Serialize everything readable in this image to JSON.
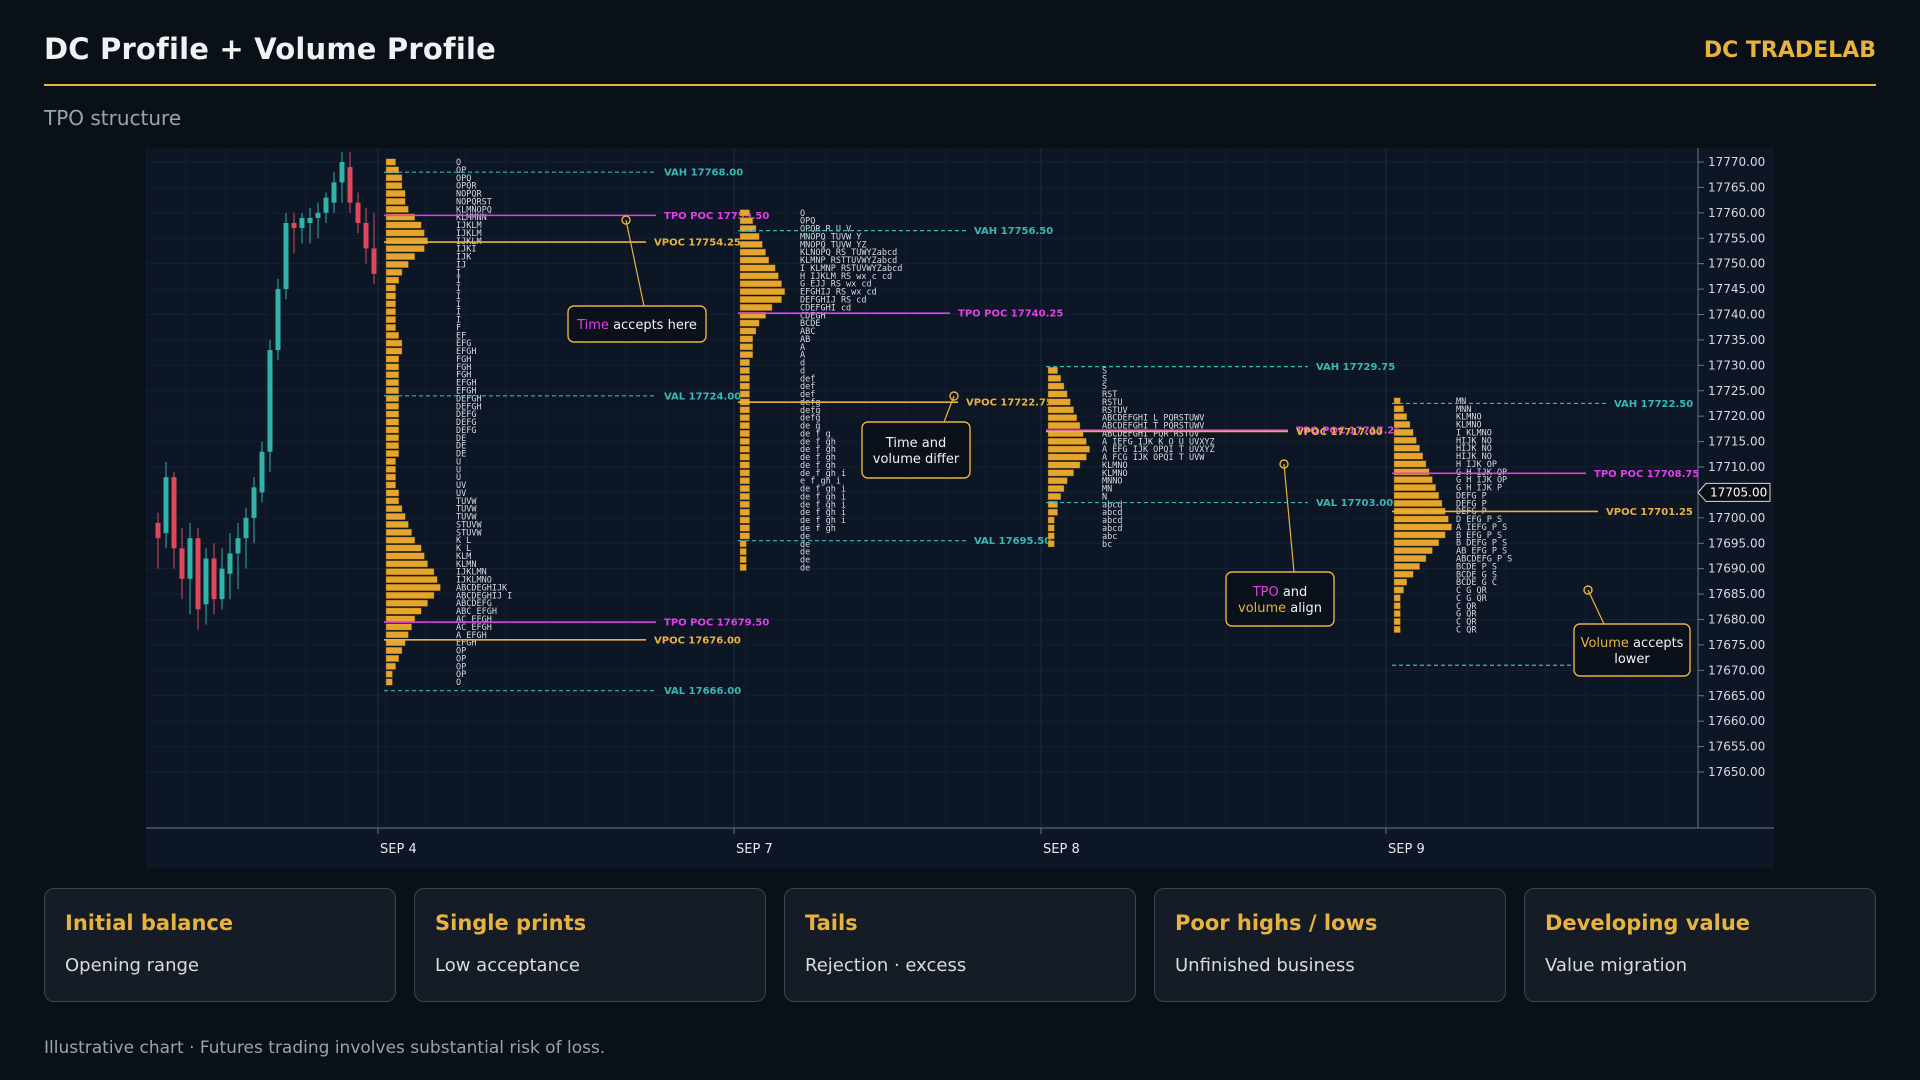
{
  "header": {
    "title": "DC Profile + Volume Profile",
    "brand": "DC TRADELAB"
  },
  "section_label": "TPO structure",
  "colors": {
    "accent": "#e8b23e",
    "tpo_poc": "#e040e6",
    "value_area": "#35b9b5",
    "candle_up": "#2fb3aa",
    "candle_down": "#e0485a",
    "volume": "#e6a52c"
  },
  "chart_data": {
    "type": "tpo_volume_profile",
    "y_axis": {
      "min": 17645,
      "max": 17772,
      "ticks": [
        17770,
        17765,
        17760,
        17755,
        17750,
        17745,
        17740,
        17735,
        17730,
        17725,
        17720,
        17715,
        17710,
        17705,
        17700,
        17695,
        17690,
        17685,
        17680,
        17675,
        17670,
        17665,
        17660,
        17655,
        17650
      ],
      "tick_format": "2dp",
      "current_price": 17705.0,
      "current_price_label": "17705.00"
    },
    "x_axis": {
      "labels": [
        "SEP 4",
        "SEP 7",
        "SEP 8",
        "SEP 9"
      ]
    },
    "candles": [
      {
        "o": 17699,
        "h": 17701,
        "l": 17690,
        "c": 17696
      },
      {
        "o": 17697,
        "h": 17711,
        "l": 17694,
        "c": 17708
      },
      {
        "o": 17708,
        "h": 17709,
        "l": 17690,
        "c": 17694
      },
      {
        "o": 17694,
        "h": 17698,
        "l": 17684,
        "c": 17688
      },
      {
        "o": 17688,
        "h": 17699,
        "l": 17681,
        "c": 17696
      },
      {
        "o": 17696,
        "h": 17698,
        "l": 17678,
        "c": 17682
      },
      {
        "o": 17683,
        "h": 17694,
        "l": 17679,
        "c": 17692
      },
      {
        "o": 17692,
        "h": 17695,
        "l": 17681,
        "c": 17684
      },
      {
        "o": 17684,
        "h": 17694,
        "l": 17682,
        "c": 17690
      },
      {
        "o": 17689,
        "h": 17697,
        "l": 17684,
        "c": 17693
      },
      {
        "o": 17693,
        "h": 17699,
        "l": 17686,
        "c": 17696
      },
      {
        "o": 17696,
        "h": 17702,
        "l": 17690,
        "c": 17700
      },
      {
        "o": 17700,
        "h": 17708,
        "l": 17695,
        "c": 17706
      },
      {
        "o": 17705,
        "h": 17715,
        "l": 17703,
        "c": 17713
      },
      {
        "o": 17713,
        "h": 17735,
        "l": 17709,
        "c": 17733
      },
      {
        "o": 17733,
        "h": 17747,
        "l": 17731,
        "c": 17745
      },
      {
        "o": 17745,
        "h": 17760,
        "l": 17743,
        "c": 17758
      },
      {
        "o": 17758,
        "h": 17760,
        "l": 17752,
        "c": 17757
      },
      {
        "o": 17757,
        "h": 17760,
        "l": 17754,
        "c": 17759
      },
      {
        "o": 17758,
        "h": 17761,
        "l": 17754,
        "c": 17759
      },
      {
        "o": 17759,
        "h": 17762,
        "l": 17755,
        "c": 17760
      },
      {
        "o": 17760,
        "h": 17764,
        "l": 17758,
        "c": 17763
      },
      {
        "o": 17762,
        "h": 17768,
        "l": 17760,
        "c": 17766
      },
      {
        "o": 17766,
        "h": 17772,
        "l": 17762,
        "c": 17770
      },
      {
        "o": 17769,
        "h": 17772,
        "l": 17760,
        "c": 17762
      },
      {
        "o": 17762,
        "h": 17764,
        "l": 17756,
        "c": 17758
      },
      {
        "o": 17758,
        "h": 17761,
        "l": 17750,
        "c": 17753
      },
      {
        "o": 17753,
        "h": 17760,
        "l": 17746,
        "c": 17748
      }
    ],
    "sessions": [
      {
        "date": "SEP 4",
        "levels": [
          {
            "kind": "vah",
            "price": 17768,
            "label": "VAH 17768.00"
          },
          {
            "kind": "tpo_poc",
            "price": 17759.5,
            "label": "TPO POC 17759.50"
          },
          {
            "kind": "vpoc",
            "price": 17754.25,
            "label": "VPOC 17754.25"
          },
          {
            "kind": "val",
            "price": 17724,
            "label": "VAL 17724.00"
          },
          {
            "kind": "tpo_poc",
            "price": 17679.5,
            "label": "TPO POC 17679.50"
          },
          {
            "kind": "vpoc",
            "price": 17676,
            "label": "VPOC 17676.00"
          },
          {
            "kind": "val",
            "price": 17666,
            "label": "VAL 17666.00"
          }
        ],
        "tpo_rows": [
          "O",
          "OP",
          "OPQ",
          "OPQR",
          "NOPQR",
          "NOPQRST",
          "KLMNOPQ",
          "KLMMNN",
          "IJKLM",
          "IJKLM",
          "IJKLM",
          "IJKI",
          "IJK",
          "IJ",
          "I",
          "I",
          "I",
          "I",
          "I",
          "I",
          "I",
          "F",
          "EF",
          "EFG",
          "EFGH",
          "FGH",
          "FGH",
          "FGH",
          "EFGH",
          "EFGH",
          "DEFGH",
          "DEFGH",
          "DEFG",
          "DEFG",
          "DEFG",
          "DE",
          "DE",
          "DE",
          "U",
          "U",
          "U",
          "UV",
          "UV",
          "TUVW",
          "TUVW",
          "TUVW",
          "STUVW",
          "STUVW",
          "K L",
          "K L",
          "KLM",
          "KLMN",
          "IJKLMN",
          "IJKLMNO",
          "ABCDEGHIJK",
          "ABCDEGHIJ I",
          "ABCDEFG",
          "ABC EFGH",
          "AC EFGH",
          "AC EFGH",
          "A EFGH",
          "EFGH",
          "OP",
          "OP",
          "OP",
          "OP",
          "O"
        ],
        "volume": [
          3,
          4,
          5,
          5,
          6,
          6,
          7,
          9,
          11,
          12,
          13,
          12,
          9,
          7,
          5,
          4,
          3,
          3,
          3,
          3,
          3,
          3,
          4,
          5,
          5,
          4,
          4,
          4,
          4,
          4,
          4,
          4,
          4,
          4,
          4,
          4,
          4,
          4,
          3,
          3,
          3,
          3,
          4,
          4,
          5,
          6,
          7,
          8,
          9,
          11,
          12,
          13,
          15,
          16,
          17,
          15,
          13,
          11,
          9,
          8,
          7,
          6,
          5,
          4,
          3,
          2,
          2
        ]
      },
      {
        "date": "SEP 7",
        "levels": [
          {
            "kind": "vah",
            "price": 17756.5,
            "label": "VAH 17756.50"
          },
          {
            "kind": "tpo_poc",
            "price": 17740.25,
            "label": "TPO POC 17740.25"
          },
          {
            "kind": "vpoc",
            "price": 17722.75,
            "label": "VPOC 17722.75"
          },
          {
            "kind": "val",
            "price": 17695.5,
            "label": "VAL 17695.50"
          }
        ],
        "tpo_rows": [
          "O",
          "OPQ",
          "OPQR R U V",
          "MNOPQ TUVW Y",
          "MNOPQ TUVW YZ",
          "KLNOPQ RS TUWYZabcd",
          "KLMNP RSTTUVWYZabcd",
          "I KLMNP RSTUVWYZabcd",
          "H IJKLM RS wx c cd",
          "G EJJ RS wx cd",
          "EFGHIJ RS wx cd",
          "DEFGHIJ RS cd",
          "CDEFGHI cd",
          "CDEGH",
          "BCDE",
          "ABC",
          "AB",
          "A",
          "A",
          "d",
          "d",
          "def",
          "def",
          "def",
          "defg",
          "defg",
          "defg",
          "de g",
          "de f g",
          "de f gh",
          "de f gh",
          "de f gh",
          "de f gh",
          "de f gh i",
          "e f gh i",
          "de f gh i",
          "de f gh i",
          "de f gh i",
          "de f gh i",
          "de f gh i",
          "de f gh",
          "de",
          "de",
          "de",
          "de",
          "de"
        ],
        "volume": [
          3,
          4,
          5,
          6,
          7,
          8,
          9,
          11,
          12,
          13,
          14,
          13,
          10,
          8,
          6,
          5,
          4,
          4,
          4,
          3,
          3,
          3,
          3,
          3,
          3,
          3,
          3,
          3,
          3,
          3,
          3,
          3,
          3,
          3,
          3,
          3,
          3,
          3,
          3,
          3,
          3,
          3,
          2,
          2,
          2,
          2
        ]
      },
      {
        "date": "SEP 8",
        "levels": [
          {
            "kind": "vah",
            "price": 17729.75,
            "label": "VAH 17729.75"
          },
          {
            "kind": "tpo_poc",
            "price": 17717.25,
            "label": "TPO POC 17717.25"
          },
          {
            "kind": "vpoc",
            "price": 17717,
            "label": "VPOC 17717.00"
          },
          {
            "kind": "val",
            "price": 17703,
            "label": "VAL 17703.00"
          }
        ],
        "tpo_rows": [
          "S",
          "S",
          "S",
          "RST",
          "RSTU",
          "RSTUV",
          "ABCDEFGHI L PQRSTUWV",
          "ABCDEFGHI T PQRSTUWV",
          "ABCDEFGHI PQR RSTUV",
          "A IEFG IJK K O U UVXYZ",
          "A EFG IJK OPQI T UVXYZ",
          "A FCG IJK OPQI T UVW",
          "KLMNO",
          "KLMNO",
          "MNNO",
          "MN",
          "N",
          "abcd",
          "abcd",
          "abcd",
          "abcd",
          "abc",
          "bc"
        ],
        "volume": [
          3,
          4,
          5,
          6,
          7,
          8,
          9,
          10,
          11,
          12,
          13,
          12,
          10,
          8,
          6,
          5,
          4,
          3,
          3,
          2,
          2,
          2,
          2
        ]
      },
      {
        "date": "SEP 9",
        "levels": [
          {
            "kind": "vah",
            "price": 17722.5,
            "label": "VAH 17722.50"
          },
          {
            "kind": "tpo_poc",
            "price": 17708.75,
            "label": "TPO POC 17708.75"
          },
          {
            "kind": "vpoc",
            "price": 17701.25,
            "label": "VPOC 17701.25"
          },
          {
            "kind": "val",
            "price": 17671,
            "label": ""
          }
        ],
        "tpo_rows": [
          "MN",
          "MNN",
          "KLMNO",
          "KLMNO",
          "I KLMNO",
          "HIJK NO",
          "HIJK NO",
          "HIJK NO",
          "H IJK OP",
          "G H IJK OP",
          "G H IJK OP",
          "G H IJK P",
          "DEFG P",
          "DEFG P",
          "DEFG P",
          "D EFG P S",
          "A IEFG P S",
          "B EFG P S",
          "B DEFG P S",
          "AB EFG P S",
          "ABCDEFG P S",
          "BCDE P S",
          "BCDE G S",
          "BCDE G C",
          "C G QR",
          "C G QR",
          "C QR",
          "G QR",
          "C QR",
          "C QR"
        ],
        "volume": [
          2,
          3,
          4,
          5,
          6,
          7,
          8,
          9,
          10,
          11,
          12,
          13,
          14,
          15,
          16,
          17,
          18,
          16,
          14,
          12,
          10,
          8,
          6,
          4,
          3,
          2,
          2,
          2,
          2,
          2
        ]
      }
    ],
    "annotations": [
      {
        "parts": [
          {
            "text": "Time",
            "hl": "tpo"
          },
          {
            "text": " accepts here"
          }
        ]
      },
      {
        "parts": [
          {
            "text": "Time and"
          }
        ],
        "line2": [
          {
            "text": "volume differ"
          }
        ]
      },
      {
        "parts": [
          {
            "text": "TPO",
            "hl": "tpo"
          },
          {
            "text": " and"
          }
        ],
        "line2": [
          {
            "text": "volume",
            "hl": "vol"
          },
          {
            "text": " align"
          }
        ]
      },
      {
        "parts": [
          {
            "text": "Volume",
            "hl": "vol"
          },
          {
            "text": " accepts"
          }
        ],
        "line2": [
          {
            "text": "lower"
          }
        ]
      }
    ]
  },
  "cards": [
    {
      "title": "Initial balance",
      "sub": "Opening range"
    },
    {
      "title": "Single prints",
      "sub": "Low acceptance"
    },
    {
      "title": "Tails",
      "sub": "Rejection · excess"
    },
    {
      "title": "Poor highs / lows",
      "sub": "Unfinished business"
    },
    {
      "title": "Developing value",
      "sub": "Value migration"
    }
  ],
  "disclaimer": "Illustrative chart · Futures trading involves substantial risk of loss."
}
